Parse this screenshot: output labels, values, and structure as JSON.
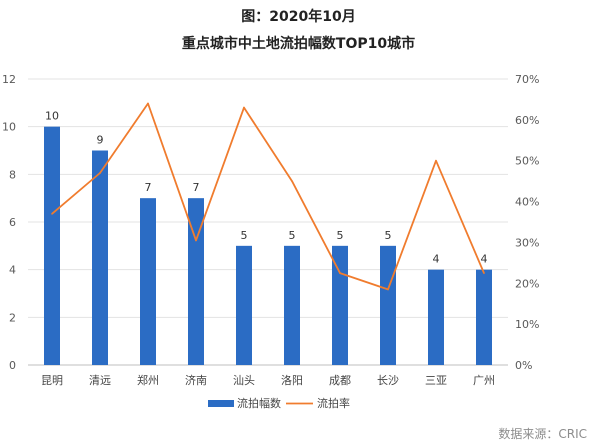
{
  "title_line1": "图：2020年10月",
  "title_line2": "重点城市中土地流拍幅数TOP10城市",
  "source": "数据来源：CRIC",
  "chart_data": {
    "type": "bar+line",
    "categories": [
      "昆明",
      "清远",
      "郑州",
      "济南",
      "汕头",
      "洛阳",
      "成都",
      "长沙",
      "三亚",
      "广州"
    ],
    "series": [
      {
        "name": "流拍幅数",
        "type": "bar",
        "axis": "left",
        "color": "#2b6cc4",
        "values": [
          10,
          9,
          7,
          7,
          5,
          5,
          5,
          5,
          4,
          4
        ]
      },
      {
        "name": "流拍率",
        "type": "line",
        "axis": "right",
        "color": "#f07c2e",
        "values": [
          37,
          47,
          64,
          30.5,
          63,
          45,
          22.5,
          18.5,
          50,
          22.5
        ]
      }
    ],
    "left_axis": {
      "min": 0,
      "max": 12,
      "step": 2,
      "tick_labels": [
        "0",
        "2",
        "4",
        "6",
        "8",
        "10",
        "12"
      ]
    },
    "right_axis": {
      "min": 0,
      "max": 70,
      "step": 10,
      "tick_labels": [
        "0%",
        "10%",
        "20%",
        "30%",
        "40%",
        "50%",
        "60%",
        "70%"
      ]
    },
    "data_labels": [
      "10",
      "9",
      "7",
      "7",
      "5",
      "5",
      "5",
      "5",
      "4",
      "4"
    ],
    "grid": true,
    "legend_position": "bottom"
  }
}
